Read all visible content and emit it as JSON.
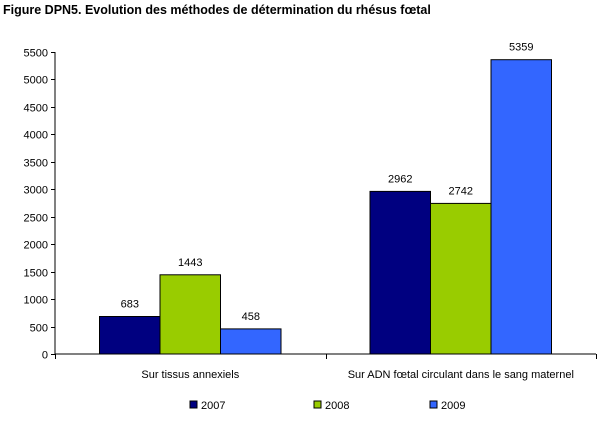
{
  "chart_data": {
    "type": "bar",
    "title": "Figure DPN5. Evolution des méthodes de détermination du rhésus fœtal",
    "xlabel": "",
    "ylabel": "",
    "ylim": [
      0,
      5500
    ],
    "yticks": [
      0,
      500,
      1000,
      1500,
      2000,
      2500,
      3000,
      3500,
      4000,
      4500,
      5000,
      5500
    ],
    "grid": false,
    "legend_position": "bottom",
    "categories": [
      "Sur tissus annexiels",
      "Sur ADN fœtal circulant dans le sang maternel"
    ],
    "series": [
      {
        "name": "2007",
        "values": [
          683,
          2962
        ],
        "color": "#000080"
      },
      {
        "name": "2008",
        "values": [
          1443,
          2742
        ],
        "color": "#99CC00"
      },
      {
        "name": "2009",
        "values": [
          458,
          5359
        ],
        "color": "#3366FF"
      }
    ]
  }
}
